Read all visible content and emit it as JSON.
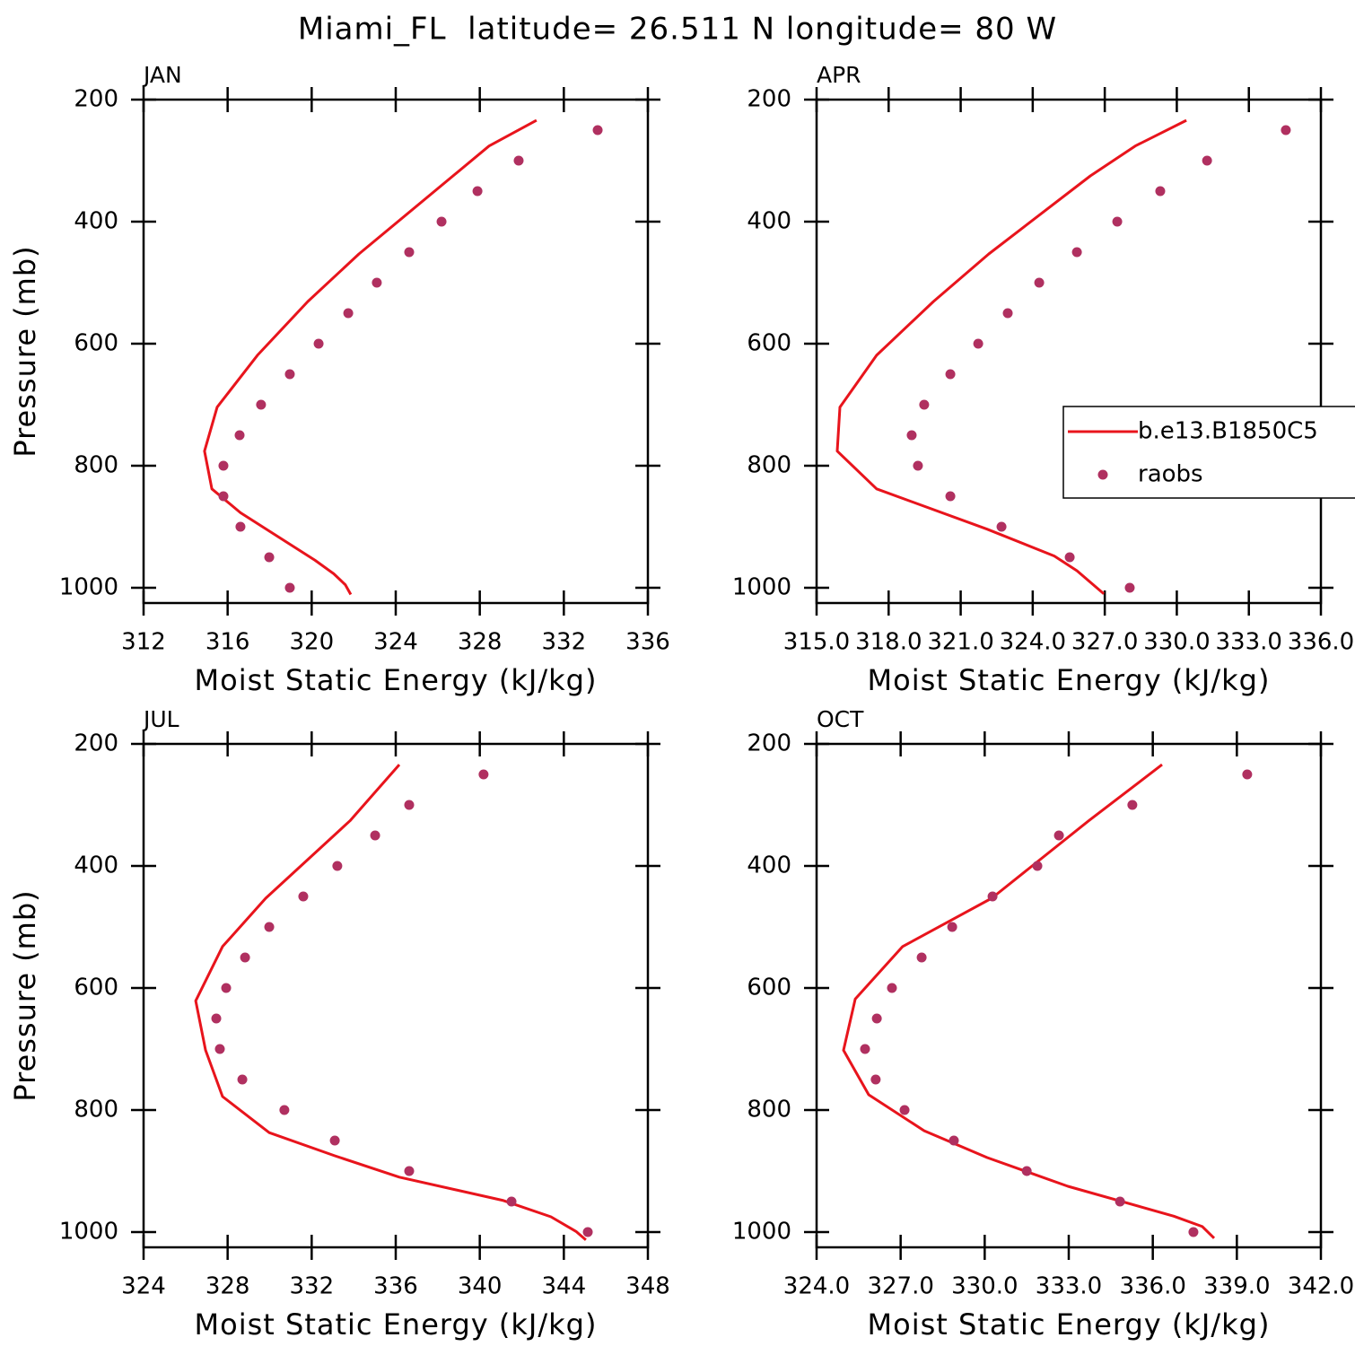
{
  "title": "Miami_FL  latitude= 26.511 N longitude= 80 W",
  "chart_data": [
    {
      "type": "profile",
      "title": "JAN",
      "xlabel": "Moist Static Energy (kJ/kg)",
      "ylabel": "Pressure (mb)",
      "xlim": [
        312,
        336
      ],
      "xticks": [
        312,
        316,
        320,
        324,
        328,
        332,
        336
      ],
      "ylim": [
        1025,
        200
      ],
      "yticks": [
        200,
        400,
        600,
        800,
        1000
      ],
      "series": [
        {
          "name": "b.e13.B1850C5",
          "kind": "line",
          "color": "#e8141c",
          "y": [
            234,
            276,
            453,
            531,
            619,
            704,
            776,
            838,
            877,
            955,
            977,
            995,
            1011
          ],
          "x": [
            330.7,
            328.44,
            322.25,
            319.81,
            317.42,
            315.5,
            314.9,
            315.25,
            316.61,
            320.16,
            321.05,
            321.6,
            321.86
          ]
        },
        {
          "name": "raobs",
          "kind": "dots",
          "color": "#b03060",
          "y": [
            250,
            300,
            350,
            400,
            450,
            500,
            550,
            600,
            650,
            700,
            750,
            800,
            850,
            900,
            950,
            1000
          ],
          "x": [
            333.61,
            329.85,
            327.89,
            326.18,
            324.64,
            323.1,
            321.74,
            320.33,
            318.96,
            317.59,
            316.57,
            315.8,
            315.8,
            316.61,
            317.98,
            318.96
          ]
        }
      ]
    },
    {
      "type": "profile",
      "title": "APR",
      "xlabel": "Moist Static Energy (kJ/kg)",
      "legend": "right",
      "xlim": [
        315,
        336
      ],
      "xticks": [
        {
          "value": 315,
          "label": "315.0"
        },
        {
          "value": 318,
          "label": "318.0"
        },
        {
          "value": 321,
          "label": "321.0"
        },
        {
          "value": 324,
          "label": "324.0"
        },
        {
          "value": 327,
          "label": "327.0"
        },
        {
          "value": 330,
          "label": "330.0"
        },
        {
          "value": 333,
          "label": "333.0"
        },
        {
          "value": 336,
          "label": "336.0"
        }
      ],
      "ylim": [
        1025,
        200
      ],
      "yticks": [
        200,
        400,
        600,
        800,
        1000
      ],
      "series": [
        {
          "name": "b.e13.B1850C5",
          "kind": "line",
          "color": "#e8141c",
          "y": [
            234,
            276,
            325,
            453,
            531,
            619,
            704,
            776,
            838,
            904,
            948,
            972,
            1010
          ],
          "x": [
            330.4,
            328.27,
            326.4,
            322.17,
            319.86,
            317.5,
            315.97,
            315.86,
            317.5,
            322.1,
            324.9,
            325.84,
            326.96
          ]
        },
        {
          "name": "raobs",
          "kind": "dots",
          "color": "#b03060",
          "y": [
            250,
            300,
            350,
            400,
            450,
            500,
            550,
            600,
            650,
            700,
            750,
            800,
            850,
            900,
            950,
            1000
          ],
          "x": [
            334.54,
            331.26,
            329.31,
            327.52,
            325.84,
            324.27,
            322.96,
            321.73,
            320.57,
            319.48,
            318.96,
            319.22,
            320.57,
            322.7,
            325.54,
            328.04
          ]
        }
      ]
    },
    {
      "type": "profile",
      "title": "JUL",
      "xlabel": "Moist Static Energy (kJ/kg)",
      "ylabel": "Pressure (mb)",
      "xlim": [
        324,
        348
      ],
      "xticks": [
        324,
        328,
        332,
        336,
        340,
        344,
        348
      ],
      "ylim": [
        1025,
        200
      ],
      "yticks": [
        200,
        400,
        600,
        800,
        1000
      ],
      "series": [
        {
          "name": "b.e13.B1850C5",
          "kind": "line",
          "color": "#e8141c",
          "y": [
            234,
            326,
            453,
            532,
            621,
            702,
            778,
            837,
            875,
            910,
            948,
            975,
            999,
            1013
          ],
          "x": [
            336.17,
            333.82,
            329.81,
            327.76,
            326.48,
            326.95,
            327.76,
            329.98,
            333.1,
            336.17,
            341.08,
            343.39,
            344.58,
            345.05
          ]
        },
        {
          "name": "raobs",
          "kind": "dots",
          "color": "#b03060",
          "y": [
            250,
            300,
            350,
            400,
            450,
            500,
            550,
            600,
            650,
            700,
            750,
            800,
            850,
            900,
            950,
            1000
          ],
          "x": [
            340.18,
            336.64,
            335.02,
            333.22,
            331.6,
            329.98,
            328.83,
            327.93,
            327.46,
            327.63,
            328.7,
            330.7,
            333.1,
            336.64,
            341.51,
            345.14
          ]
        }
      ]
    },
    {
      "type": "profile",
      "title": "OCT",
      "xlabel": "Moist Static Energy (kJ/kg)",
      "xlim": [
        324,
        342
      ],
      "xticks": [
        {
          "value": 324,
          "label": "324.0"
        },
        {
          "value": 327,
          "label": "327.0"
        },
        {
          "value": 330,
          "label": "330.0"
        },
        {
          "value": 333,
          "label": "333.0"
        },
        {
          "value": 336,
          "label": "336.0"
        },
        {
          "value": 339,
          "label": "339.0"
        },
        {
          "value": 342,
          "label": "342.0"
        }
      ],
      "ylim": [
        1025,
        200
      ],
      "yticks": [
        200,
        400,
        600,
        800,
        1000
      ],
      "series": [
        {
          "name": "b.e13.B1850C5",
          "kind": "line",
          "color": "#e8141c",
          "y": [
            234,
            326,
            453,
            532,
            618,
            702,
            775,
            834,
            878,
            925,
            974,
            991,
            1010
          ],
          "x": [
            336.33,
            333.71,
            330.25,
            327.07,
            325.38,
            324.96,
            325.86,
            327.84,
            330.09,
            332.97,
            336.75,
            337.77,
            338.19
          ]
        },
        {
          "name": "raobs",
          "kind": "dots",
          "color": "#b03060",
          "y": [
            250,
            300,
            350,
            400,
            450,
            500,
            550,
            600,
            650,
            700,
            750,
            800,
            850,
            900,
            950,
            1000
          ],
          "x": [
            339.37,
            335.27,
            332.65,
            331.88,
            330.28,
            328.84,
            327.75,
            326.69,
            326.15,
            325.73,
            326.11,
            327.14,
            328.9,
            331.5,
            334.83,
            337.45
          ]
        }
      ]
    }
  ]
}
